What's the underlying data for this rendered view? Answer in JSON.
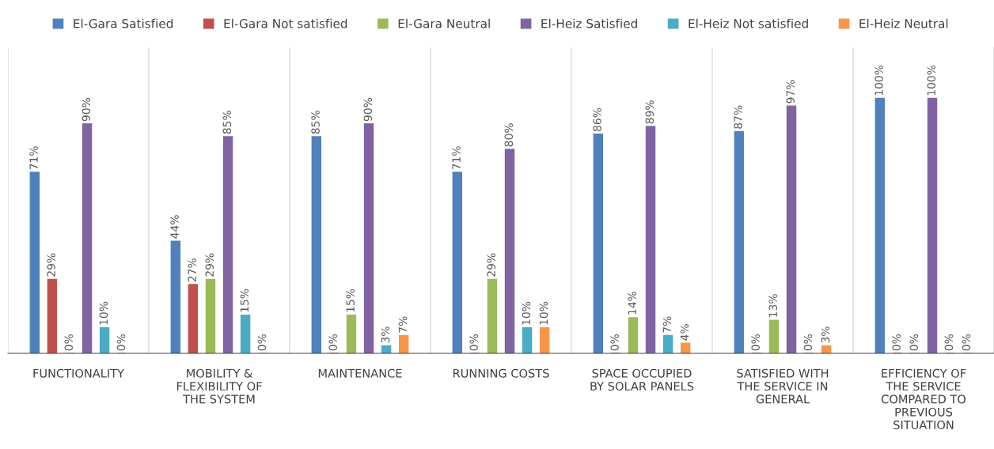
{
  "chart_data": {
    "type": "bar",
    "categories": [
      "FUNCTIONALITY",
      "MOBILITY & FLEXIBILITY OF THE SYSTEM",
      "MAINTENANCE",
      "RUNNING COSTS",
      "SPACE OCCUPIED BY SOLAR PANELS",
      "SATISFIED WITH THE SERVICE IN GENERAL",
      "EFFICIENCY OF THE SERVICE COMPARED TO PREVIOUS SITUATION"
    ],
    "series": [
      {
        "name": "El-Gara Satisfied",
        "color": "#4f81bd",
        "values": [
          71,
          44,
          85,
          71,
          86,
          87,
          100
        ],
        "value_labels": [
          "71%",
          "44%",
          "85%",
          "71%",
          "86%",
          "87%",
          "100%"
        ]
      },
      {
        "name": "El-Gara Not satisfied",
        "color": "#c0504d",
        "values": [
          29,
          27,
          0,
          0,
          0,
          0,
          0
        ],
        "value_labels": [
          "29%",
          "27%",
          "0%",
          "0%",
          "0%",
          "0%",
          "0%"
        ]
      },
      {
        "name": "El-Gara Neutral",
        "color": "#9bbb59",
        "values": [
          0,
          29,
          15,
          29,
          14,
          13,
          0
        ],
        "value_labels": [
          "0%",
          "29%",
          "15%",
          "29%",
          "14%",
          "13%",
          "0%"
        ]
      },
      {
        "name": "El-Heiz Satisfied",
        "color": "#8064a2",
        "values": [
          90,
          85,
          90,
          80,
          89,
          97,
          100
        ],
        "value_labels": [
          "90%",
          "85%",
          "90%",
          "80%",
          "89%",
          "97%",
          "100%"
        ]
      },
      {
        "name": "El-Heiz Not satisfied",
        "color": "#4bacc6",
        "values": [
          10,
          15,
          3,
          10,
          7,
          0,
          0
        ],
        "value_labels": [
          "10%",
          "15%",
          "3%",
          "10%",
          "7%",
          "0%",
          "0%"
        ]
      },
      {
        "name": "El-Heiz Neutral",
        "color": "#f79646",
        "values": [
          0,
          0,
          7,
          10,
          4,
          3,
          0
        ],
        "value_labels": [
          "0%",
          "0%",
          "7%",
          "10%",
          "4%",
          "3%",
          "0%"
        ]
      }
    ],
    "grid": "x",
    "legend": "top"
  }
}
